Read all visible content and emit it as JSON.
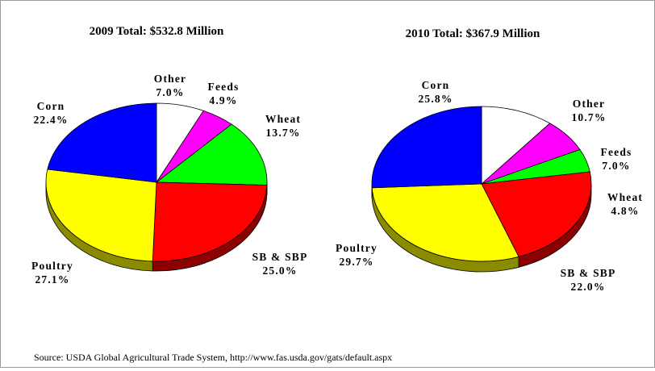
{
  "source": "Source:  USDA Global Agricultural Trade System, http://www.fas.usda.gov/gats/default.aspx",
  "colors": {
    "Corn": "#0000ff",
    "Other": "#ffffff",
    "Feeds": "#ff00ff",
    "Wheat": "#00ff00",
    "SB & SBP": "#ff0000",
    "Poultry": "#ffff00"
  },
  "chart_data": [
    {
      "type": "pie",
      "title": "2009 Total:  $532.8 Million",
      "slices": [
        {
          "name": "Other",
          "value": 7.0,
          "label": "7.0%"
        },
        {
          "name": "Feeds",
          "value": 4.9,
          "label": "4.9%"
        },
        {
          "name": "Wheat",
          "value": 13.7,
          "label": "13.7%"
        },
        {
          "name": "SB & SBP",
          "value": 25.0,
          "label": "25.0%"
        },
        {
          "name": "Poultry",
          "value": 27.1,
          "label": "27.1%"
        },
        {
          "name": "Corn",
          "value": 22.4,
          "label": "22.4%"
        }
      ]
    },
    {
      "type": "pie",
      "title": "2010 Total: $367.9 Million",
      "slices": [
        {
          "name": "Other",
          "value": 10.7,
          "label": "10.7%"
        },
        {
          "name": "Feeds",
          "value": 7.0,
          "label": "7.0%"
        },
        {
          "name": "Wheat",
          "value": 4.8,
          "label": "4.8%"
        },
        {
          "name": "SB & SBP",
          "value": 22.0,
          "label": "22.0%"
        },
        {
          "name": "Poultry",
          "value": 29.7,
          "label": "29.7%"
        },
        {
          "name": "Corn",
          "value": 25.8,
          "label": "25.8%"
        }
      ]
    }
  ]
}
